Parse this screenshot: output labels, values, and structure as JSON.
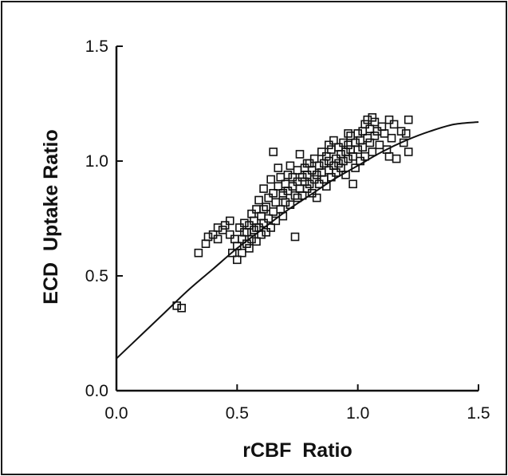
{
  "chart_data": {
    "type": "scatter",
    "title": "",
    "xlabel": "rCBF  Ratio",
    "ylabel": "ECD  Uptake Ratio",
    "xlim": [
      0.0,
      1.5
    ],
    "ylim": [
      0.0,
      1.5
    ],
    "x_ticks": [
      0.0,
      0.5,
      1.0,
      1.5
    ],
    "y_ticks": [
      0.0,
      0.5,
      1.0,
      1.5
    ],
    "x_tick_labels": [
      "0.0",
      "0.5",
      "1.0",
      "1.5"
    ],
    "y_tick_labels": [
      "0.0",
      "0.5",
      "1.0",
      "1.5"
    ],
    "grid": false,
    "legend": null,
    "marker": "open-square",
    "series": [
      {
        "points": [
          [
            0.25,
            0.37
          ],
          [
            0.27,
            0.36
          ],
          [
            0.34,
            0.6
          ],
          [
            0.37,
            0.64
          ],
          [
            0.38,
            0.67
          ],
          [
            0.4,
            0.68
          ],
          [
            0.42,
            0.66
          ],
          [
            0.42,
            0.71
          ],
          [
            0.44,
            0.7
          ],
          [
            0.45,
            0.72
          ],
          [
            0.47,
            0.68
          ],
          [
            0.47,
            0.74
          ],
          [
            0.48,
            0.6
          ],
          [
            0.49,
            0.66
          ],
          [
            0.5,
            0.63
          ],
          [
            0.5,
            0.57
          ],
          [
            0.51,
            0.71
          ],
          [
            0.52,
            0.6
          ],
          [
            0.52,
            0.66
          ],
          [
            0.53,
            0.73
          ],
          [
            0.54,
            0.64
          ],
          [
            0.54,
            0.69
          ],
          [
            0.55,
            0.72
          ],
          [
            0.55,
            0.62
          ],
          [
            0.56,
            0.77
          ],
          [
            0.56,
            0.66
          ],
          [
            0.57,
            0.7
          ],
          [
            0.57,
            0.74
          ],
          [
            0.58,
            0.79
          ],
          [
            0.58,
            0.65
          ],
          [
            0.59,
            0.71
          ],
          [
            0.59,
            0.83
          ],
          [
            0.6,
            0.68
          ],
          [
            0.6,
            0.76
          ],
          [
            0.61,
            0.73
          ],
          [
            0.61,
            0.88
          ],
          [
            0.62,
            0.8
          ],
          [
            0.62,
            0.69
          ],
          [
            0.63,
            0.75
          ],
          [
            0.63,
            0.84
          ],
          [
            0.64,
            0.71
          ],
          [
            0.64,
            0.92
          ],
          [
            0.65,
            0.78
          ],
          [
            0.65,
            0.86
          ],
          [
            0.66,
            0.74
          ],
          [
            0.66,
            0.82
          ],
          [
            0.67,
            0.89
          ],
          [
            0.67,
            0.97
          ],
          [
            0.68,
            0.79
          ],
          [
            0.68,
            0.93
          ],
          [
            0.69,
            0.85
          ],
          [
            0.69,
            0.76
          ],
          [
            0.7,
            0.9
          ],
          [
            0.7,
            0.82
          ],
          [
            0.71,
            0.87
          ],
          [
            0.71,
            0.94
          ],
          [
            0.72,
            0.81
          ],
          [
            0.72,
            0.98
          ],
          [
            0.73,
            0.89
          ],
          [
            0.73,
            0.93
          ],
          [
            0.74,
            0.85
          ],
          [
            0.74,
            0.67
          ],
          [
            0.75,
            0.91
          ],
          [
            0.75,
            0.96
          ],
          [
            0.76,
            0.88
          ],
          [
            0.76,
            1.03
          ],
          [
            0.77,
            0.93
          ],
          [
            0.77,
            0.85
          ],
          [
            0.78,
            0.97
          ],
          [
            0.78,
            0.91
          ],
          [
            0.79,
            0.88
          ],
          [
            0.79,
            0.94
          ],
          [
            0.8,
            0.99
          ],
          [
            0.8,
            0.9
          ],
          [
            0.81,
            0.86
          ],
          [
            0.81,
            0.96
          ],
          [
            0.82,
            0.92
          ],
          [
            0.82,
            1.01
          ],
          [
            0.83,
            0.94
          ],
          [
            0.83,
            0.84
          ],
          [
            0.84,
            0.98
          ],
          [
            0.84,
            0.9
          ],
          [
            0.85,
            1.04
          ],
          [
            0.85,
            0.95
          ],
          [
            0.86,
            0.92
          ],
          [
            0.86,
            0.99
          ],
          [
            0.87,
            1.02
          ],
          [
            0.87,
            0.89
          ],
          [
            0.88,
            0.96
          ],
          [
            0.88,
            1.0
          ],
          [
            0.89,
            0.93
          ],
          [
            0.89,
            1.05
          ],
          [
            0.9,
            0.98
          ],
          [
            0.9,
            1.09
          ],
          [
            0.91,
            0.95
          ],
          [
            0.91,
            1.01
          ],
          [
            0.92,
            0.99
          ],
          [
            0.92,
            1.06
          ],
          [
            0.93,
            1.03
          ],
          [
            0.93,
            0.97
          ],
          [
            0.94,
            1.0
          ],
          [
            0.94,
            1.08
          ],
          [
            0.95,
            1.04
          ],
          [
            0.95,
            0.94
          ],
          [
            0.96,
            1.07
          ],
          [
            0.96,
            1.01
          ],
          [
            0.97,
            1.11
          ],
          [
            0.97,
            1.05
          ],
          [
            0.98,
            1.02
          ],
          [
            0.98,
            0.9
          ],
          [
            0.99,
            1.08
          ],
          [
            0.99,
            0.97
          ],
          [
            1.0,
            1.12
          ],
          [
            1.0,
            1.05
          ],
          [
            1.01,
            1.0
          ],
          [
            1.01,
            1.09
          ],
          [
            1.02,
            1.13
          ],
          [
            1.02,
            1.06
          ],
          [
            1.03,
            1.16
          ],
          [
            1.03,
            1.02
          ],
          [
            1.04,
            1.1
          ],
          [
            1.04,
            1.18
          ],
          [
            1.05,
            1.08
          ],
          [
            1.05,
            1.14
          ],
          [
            1.06,
            1.19
          ],
          [
            1.06,
            1.04
          ],
          [
            1.07,
            1.11
          ],
          [
            1.07,
            1.17
          ],
          [
            1.08,
            1.13
          ],
          [
            1.09,
            1.07
          ],
          [
            1.1,
            1.15
          ],
          [
            1.11,
            1.12
          ],
          [
            1.12,
            1.05
          ],
          [
            1.13,
            1.18
          ],
          [
            1.14,
            1.1
          ],
          [
            1.15,
            1.16
          ],
          [
            1.16,
            1.01
          ],
          [
            1.18,
            1.13
          ],
          [
            1.19,
            1.08
          ],
          [
            1.2,
            1.12
          ],
          [
            1.21,
            1.04
          ],
          [
            1.21,
            1.18
          ],
          [
            0.65,
            1.04
          ],
          [
            0.69,
            0.86
          ],
          [
            0.79,
            0.99
          ],
          [
            0.88,
            1.07
          ],
          [
            0.96,
            1.12
          ],
          [
            1.13,
            1.02
          ],
          [
            0.58,
            0.71
          ],
          [
            0.53,
            0.69
          ],
          [
            0.61,
            0.79
          ],
          [
            0.75,
            0.84
          ]
        ]
      }
    ],
    "fit_curve": {
      "x": [
        0.0,
        0.1,
        0.2,
        0.3,
        0.4,
        0.5,
        0.6,
        0.7,
        0.8,
        0.9,
        1.0,
        1.1,
        1.2,
        1.3,
        1.4,
        1.5
      ],
      "y": [
        0.14,
        0.24,
        0.34,
        0.44,
        0.53,
        0.62,
        0.7,
        0.78,
        0.85,
        0.92,
        0.98,
        1.04,
        1.09,
        1.13,
        1.16,
        1.17
      ]
    }
  }
}
